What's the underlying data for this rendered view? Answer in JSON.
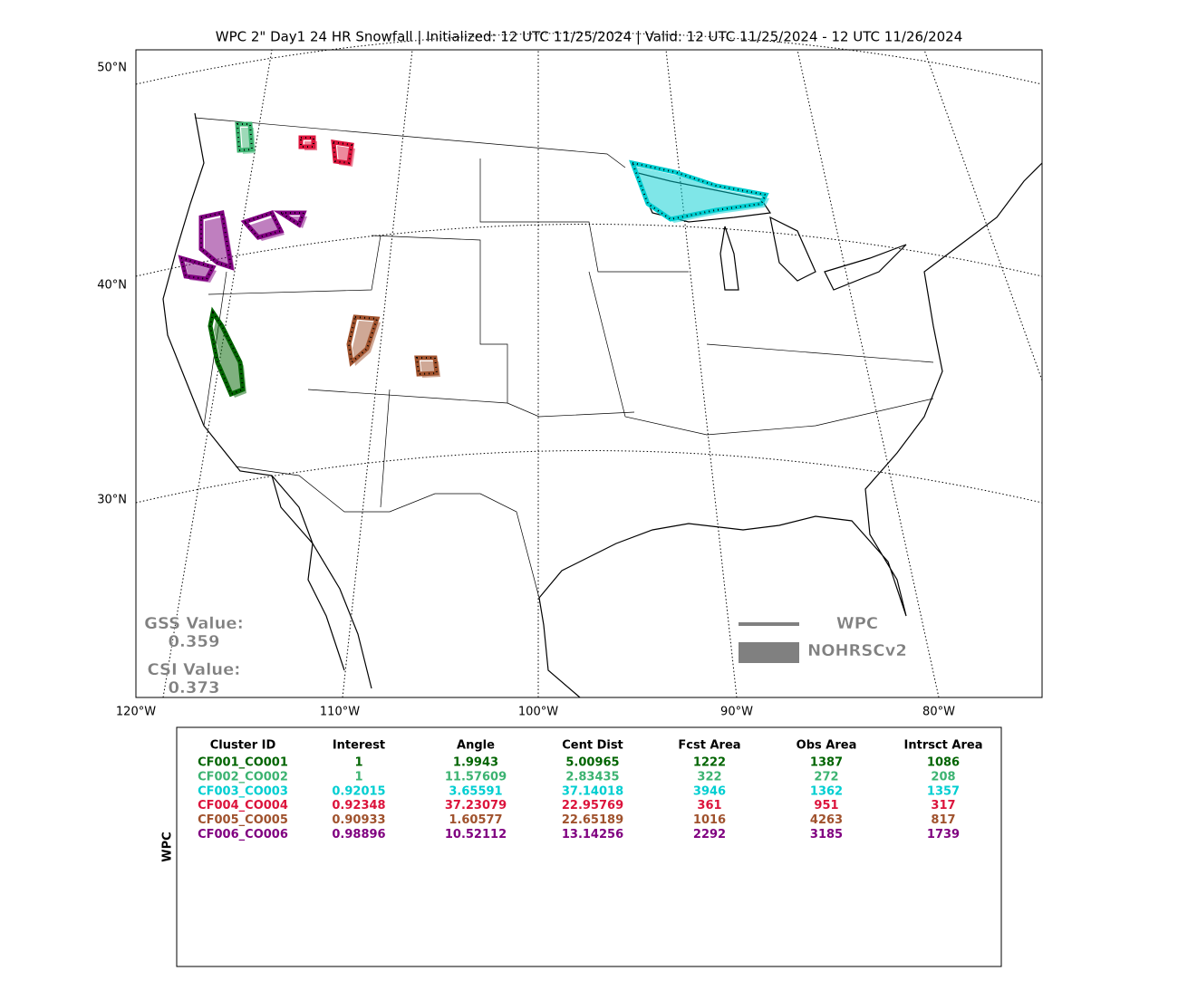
{
  "title": "WPC 2\" Day1 24 HR Snowfall | Initialized: 12 UTC 11/25/2024 | Valid: 12 UTC 11/25/2024 - 12 UTC 11/26/2024",
  "map": {
    "lat_labels": [
      "50°N",
      "40°N",
      "30°N"
    ],
    "lon_labels": [
      "120°W",
      "110°W",
      "100°W",
      "90°W",
      "80°W"
    ]
  },
  "legend": {
    "items": [
      {
        "label": "WPC",
        "color": "#808080"
      },
      {
        "label": "NOHRSCv2",
        "color": "#808080"
      }
    ]
  },
  "scores": [
    {
      "label": "GSS Value:",
      "value": "0.359"
    },
    {
      "label": "CSI Value:",
      "value": "0.373"
    }
  ],
  "table": {
    "side_label": "WPC",
    "columns": [
      "Cluster ID",
      "Interest",
      "Angle",
      "Cent Dist",
      "Fcst Area",
      "Obs Area",
      "Intrsct Area"
    ],
    "rows": [
      {
        "color": "#006400",
        "cells": [
          "CF001_CO001",
          "1",
          "1.9943",
          "5.00965",
          "1222",
          "1387",
          "1086"
        ]
      },
      {
        "color": "#3cb371",
        "cells": [
          "CF002_CO002",
          "1",
          "11.57609",
          "2.83435",
          "322",
          "272",
          "208"
        ]
      },
      {
        "color": "#00ced1",
        "cells": [
          "CF003_CO003",
          "0.92015",
          "3.65591",
          "37.14018",
          "3946",
          "1362",
          "1357"
        ]
      },
      {
        "color": "#dc143c",
        "cells": [
          "CF004_CO004",
          "0.92348",
          "37.23079",
          "22.95769",
          "361",
          "951",
          "317"
        ]
      },
      {
        "color": "#a0522d",
        "cells": [
          "CF005_CO005",
          "0.90933",
          "1.60577",
          "22.65189",
          "1016",
          "4263",
          "817"
        ]
      },
      {
        "color": "#800080",
        "cells": [
          "CF006_CO006",
          "0.98896",
          "10.52112",
          "13.14256",
          "2292",
          "3185",
          "1739"
        ]
      }
    ]
  }
}
